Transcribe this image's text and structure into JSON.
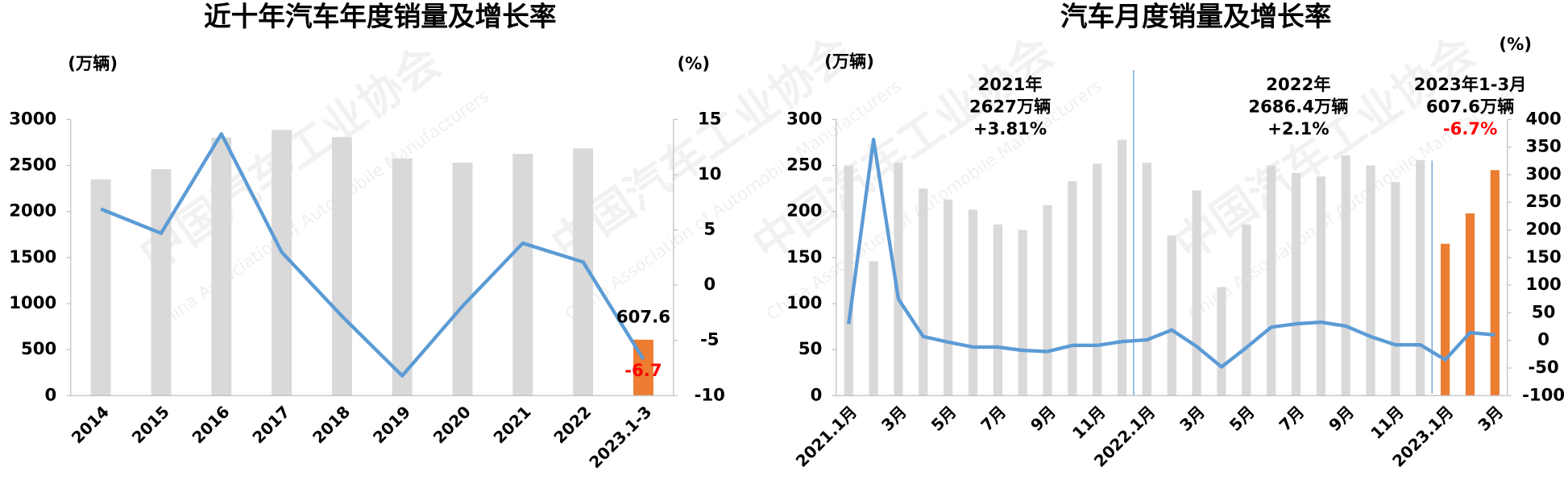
{
  "watermark": {
    "cn": "中国汽车工业协会",
    "en": "China Association of Automobile Manufacturers"
  },
  "chart_data": [
    {
      "type": "bar_line",
      "title": "近十年汽车年度销量及增长率",
      "y_label": "(万辆)",
      "y2_label": "(%)",
      "categories": [
        "2014",
        "2015",
        "2016",
        "2017",
        "2018",
        "2019",
        "2020",
        "2021",
        "2022",
        "2023.1-3"
      ],
      "ylim": [
        0,
        3000
      ],
      "yticks": [
        0,
        500,
        1000,
        1500,
        2000,
        2500,
        3000
      ],
      "y2lim": [
        -10,
        15
      ],
      "y2ticks": [
        -10,
        -5,
        0,
        5,
        10,
        15
      ],
      "series": [
        {
          "type": "bar",
          "color": "#d9d9d9",
          "colors": [
            "#d9d9d9",
            "#d9d9d9",
            "#d9d9d9",
            "#d9d9d9",
            "#d9d9d9",
            "#d9d9d9",
            "#d9d9d9",
            "#d9d9d9",
            "#d9d9d9",
            "#ed7d31"
          ],
          "values": [
            2349,
            2460,
            2803,
            2888,
            2808,
            2577,
            2531,
            2627,
            2686,
            607.6
          ],
          "value_labels": [
            null,
            null,
            null,
            null,
            null,
            null,
            null,
            null,
            null,
            "607.6"
          ],
          "label_color": "#000000"
        },
        {
          "type": "line",
          "axis": "y2",
          "color": "#5b9bd5",
          "values": [
            6.9,
            4.7,
            13.7,
            3.0,
            -2.8,
            -8.2,
            -1.9,
            3.8,
            2.1,
            -6.7
          ],
          "value_labels": [
            null,
            null,
            null,
            null,
            null,
            null,
            null,
            null,
            null,
            "-6.7"
          ],
          "label_color": "#ff0000"
        }
      ]
    },
    {
      "type": "bar_line",
      "title": "汽车月度销量及增长率",
      "y_label": "(万辆)",
      "y2_label": "(%)",
      "categories": [
        "2021.1月",
        null,
        "3月",
        null,
        "5月",
        null,
        "7月",
        null,
        "9月",
        null,
        "11月",
        null,
        "2022.1月",
        null,
        "3月",
        null,
        "5月",
        null,
        "7月",
        null,
        "9月",
        null,
        "11月",
        null,
        "2023.1月",
        null,
        "3月"
      ],
      "ylim": [
        0,
        300
      ],
      "yticks": [
        0,
        50,
        100,
        150,
        200,
        250,
        300
      ],
      "y2lim": [
        -100,
        400
      ],
      "y2ticks": [
        -100,
        -50,
        0,
        50,
        100,
        150,
        200,
        250,
        300,
        350,
        400
      ],
      "series": [
        {
          "type": "bar",
          "color": "#d9d9d9",
          "colors": [
            "#d9d9d9",
            "#d9d9d9",
            "#d9d9d9",
            "#d9d9d9",
            "#d9d9d9",
            "#d9d9d9",
            "#d9d9d9",
            "#d9d9d9",
            "#d9d9d9",
            "#d9d9d9",
            "#d9d9d9",
            "#d9d9d9",
            "#d9d9d9",
            "#d9d9d9",
            "#d9d9d9",
            "#d9d9d9",
            "#d9d9d9",
            "#d9d9d9",
            "#d9d9d9",
            "#d9d9d9",
            "#d9d9d9",
            "#d9d9d9",
            "#d9d9d9",
            "#d9d9d9",
            "#ed7d31",
            "#ed7d31",
            "#ed7d31"
          ],
          "values": [
            250,
            146,
            253,
            225,
            213,
            202,
            186,
            180,
            207,
            233,
            252,
            278,
            253,
            174,
            223,
            118,
            186,
            250,
            242,
            238,
            261,
            250,
            232,
            256,
            165,
            198,
            245
          ]
        },
        {
          "type": "line",
          "axis": "y2",
          "color": "#5b9bd5",
          "values": [
            29.5,
            364,
            75,
            7,
            -3,
            -12,
            -12,
            -18,
            -20,
            -9,
            -9,
            -2,
            1,
            19,
            -11,
            -48,
            -13,
            24,
            30,
            33,
            26,
            7,
            -8,
            -8,
            -35,
            14,
            10
          ]
        }
      ],
      "annotations": [
        {
          "lines": [
            "2021年",
            "2627万辆",
            "+3.81%"
          ],
          "colors": [
            "#000000",
            "#000000",
            "#000000"
          ]
        },
        {
          "lines": [
            "2022年",
            "2686.4万辆",
            "+2.1%"
          ],
          "colors": [
            "#000000",
            "#000000",
            "#000000"
          ]
        },
        {
          "lines": [
            "2023年1-3月",
            "607.6万辆",
            "-6.7%"
          ],
          "colors": [
            "#000000",
            "#000000",
            "#ff0000"
          ]
        }
      ]
    }
  ]
}
